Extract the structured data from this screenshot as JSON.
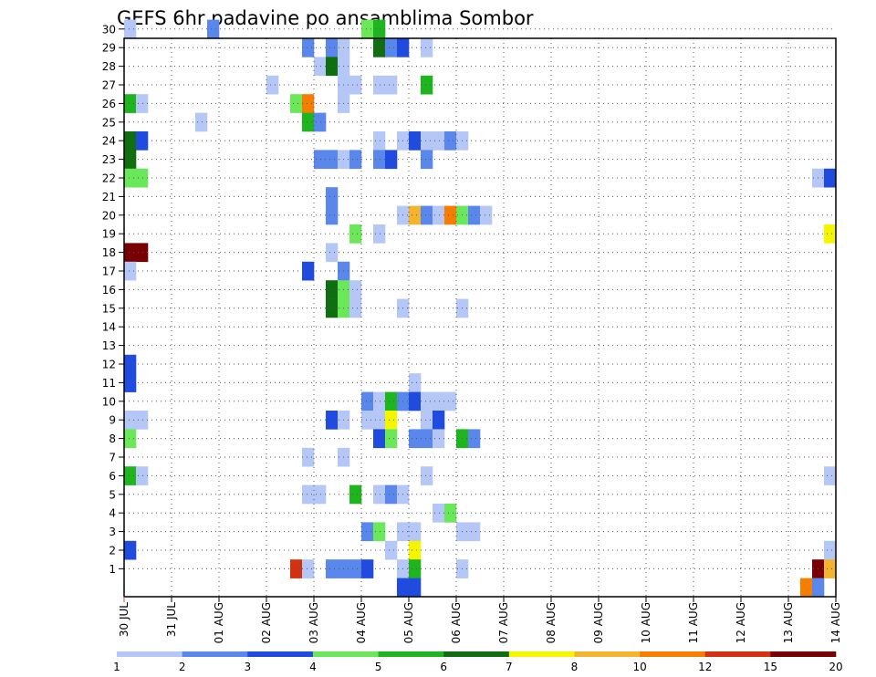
{
  "chart_data": {
    "type": "heatmap",
    "title": "GEFS 6hr padavine po ansamblima Sombor",
    "xlabel": "",
    "ylabel": "",
    "y_ticks": [
      "1",
      "2",
      "3",
      "4",
      "5",
      "6",
      "7",
      "8",
      "9",
      "10",
      "11",
      "12",
      "13",
      "14",
      "15",
      "16",
      "17",
      "18",
      "19",
      "20",
      "21",
      "22",
      "23",
      "24",
      "25",
      "26",
      "27",
      "28",
      "29",
      "30"
    ],
    "x_ticks": [
      "30 JUL",
      "31 JUL",
      "01 AUG",
      "02 AUG",
      "03 AUG",
      "04 AUG",
      "05 AUG",
      "06 AUG",
      "07 AUG",
      "08 AUG",
      "09 AUG",
      "10 AUG",
      "11 AUG",
      "12 AUG",
      "13 AUG",
      "14 AUG"
    ],
    "x_range": [
      "30 JUL 00Z",
      "14 AUG 00Z"
    ],
    "step": "6hr",
    "grid": true,
    "legend": {
      "placement": "bottom",
      "ticks": [
        "1",
        "2",
        "3",
        "4",
        "5",
        "6",
        "7",
        "8",
        "10",
        "12",
        "15",
        "20"
      ],
      "colors": [
        "#b4c7f7",
        "#5a87eb",
        "#1f4be0",
        "#6be85a",
        "#1fb51f",
        "#0f6e0f",
        "#f5f500",
        "#f5b42d",
        "#f57d00",
        "#d2320f",
        "#780000"
      ]
    },
    "cells": [
      {
        "t": 1,
        "m": 30,
        "c": 0
      },
      {
        "t": 8,
        "m": 30,
        "c": 1
      },
      {
        "t": 21,
        "m": 30,
        "c": 3
      },
      {
        "t": 22,
        "m": 30,
        "c": 4
      },
      {
        "t": 16,
        "m": 29,
        "c": 1
      },
      {
        "t": 18,
        "m": 29,
        "c": 1
      },
      {
        "t": 19,
        "m": 29,
        "c": 0
      },
      {
        "t": 22,
        "m": 29,
        "c": 5
      },
      {
        "t": 23,
        "m": 29,
        "c": 1
      },
      {
        "t": 24,
        "m": 29,
        "c": 2
      },
      {
        "t": 26,
        "m": 29,
        "c": 0
      },
      {
        "t": 17,
        "m": 28,
        "c": 0
      },
      {
        "t": 18,
        "m": 28,
        "c": 5
      },
      {
        "t": 19,
        "m": 28,
        "c": 0
      },
      {
        "t": 13,
        "m": 27,
        "c": 0
      },
      {
        "t": 19,
        "m": 27,
        "c": 0
      },
      {
        "t": 20,
        "m": 27,
        "c": 0
      },
      {
        "t": 22,
        "m": 27,
        "c": 0
      },
      {
        "t": 23,
        "m": 27,
        "c": 0
      },
      {
        "t": 26,
        "m": 27,
        "c": 4
      },
      {
        "t": 1,
        "m": 26,
        "c": 4
      },
      {
        "t": 2,
        "m": 26,
        "c": 0
      },
      {
        "t": 15,
        "m": 26,
        "c": 3
      },
      {
        "t": 16,
        "m": 26,
        "c": 8
      },
      {
        "t": 19,
        "m": 26,
        "c": 0
      },
      {
        "t": 7,
        "m": 25,
        "c": 0
      },
      {
        "t": 16,
        "m": 25,
        "c": 4
      },
      {
        "t": 17,
        "m": 25,
        "c": 1
      },
      {
        "t": 1,
        "m": 24,
        "c": 5
      },
      {
        "t": 2,
        "m": 24,
        "c": 2
      },
      {
        "t": 22,
        "m": 24,
        "c": 0
      },
      {
        "t": 24,
        "m": 24,
        "c": 0
      },
      {
        "t": 25,
        "m": 24,
        "c": 2
      },
      {
        "t": 26,
        "m": 24,
        "c": 0
      },
      {
        "t": 27,
        "m": 24,
        "c": 0
      },
      {
        "t": 28,
        "m": 24,
        "c": 1
      },
      {
        "t": 29,
        "m": 24,
        "c": 0
      },
      {
        "t": 1,
        "m": 23,
        "c": 5
      },
      {
        "t": 17,
        "m": 23,
        "c": 1
      },
      {
        "t": 18,
        "m": 23,
        "c": 1
      },
      {
        "t": 19,
        "m": 23,
        "c": 0
      },
      {
        "t": 20,
        "m": 23,
        "c": 1
      },
      {
        "t": 22,
        "m": 23,
        "c": 1
      },
      {
        "t": 23,
        "m": 23,
        "c": 2
      },
      {
        "t": 26,
        "m": 23,
        "c": 1
      },
      {
        "t": 1,
        "m": 22,
        "c": 3
      },
      {
        "t": 2,
        "m": 22,
        "c": 3
      },
      {
        "t": 59,
        "m": 22,
        "c": 0
      },
      {
        "t": 60,
        "m": 22,
        "c": 2
      },
      {
        "t": 18,
        "m": 21,
        "c": 1
      },
      {
        "t": 18,
        "m": 20,
        "c": 1
      },
      {
        "t": 24,
        "m": 20,
        "c": 0
      },
      {
        "t": 25,
        "m": 20,
        "c": 7
      },
      {
        "t": 26,
        "m": 20,
        "c": 1
      },
      {
        "t": 27,
        "m": 20,
        "c": 0
      },
      {
        "t": 28,
        "m": 20,
        "c": 8
      },
      {
        "t": 29,
        "m": 20,
        "c": 3
      },
      {
        "t": 30,
        "m": 20,
        "c": 1
      },
      {
        "t": 31,
        "m": 20,
        "c": 0
      },
      {
        "t": 20,
        "m": 19,
        "c": 3
      },
      {
        "t": 22,
        "m": 19,
        "c": 0
      },
      {
        "t": 60,
        "m": 19,
        "c": 6
      },
      {
        "t": 18,
        "m": 18,
        "c": 0
      },
      {
        "t": 1,
        "m": 18,
        "c": 10
      },
      {
        "t": 2,
        "m": 18,
        "c": 10
      },
      {
        "t": 19,
        "m": 17,
        "c": 1
      },
      {
        "t": 1,
        "m": 17,
        "c": 0
      },
      {
        "t": 16,
        "m": 17,
        "c": 2
      },
      {
        "t": 18,
        "m": 16,
        "c": 5
      },
      {
        "t": 19,
        "m": 16,
        "c": 3
      },
      {
        "t": 20,
        "m": 16,
        "c": 0
      },
      {
        "t": 18,
        "m": 15,
        "c": 5
      },
      {
        "t": 19,
        "m": 15,
        "c": 3
      },
      {
        "t": 20,
        "m": 15,
        "c": 0
      },
      {
        "t": 24,
        "m": 15,
        "c": 0
      },
      {
        "t": 29,
        "m": 15,
        "c": 0
      },
      {
        "t": 1,
        "m": 12,
        "c": 2
      },
      {
        "t": 1,
        "m": 11,
        "c": 2
      },
      {
        "t": 25,
        "m": 11,
        "c": 0
      },
      {
        "t": 21,
        "m": 10,
        "c": 1
      },
      {
        "t": 22,
        "m": 10,
        "c": 0
      },
      {
        "t": 23,
        "m": 10,
        "c": 4
      },
      {
        "t": 24,
        "m": 10,
        "c": 1
      },
      {
        "t": 25,
        "m": 10,
        "c": 2
      },
      {
        "t": 26,
        "m": 10,
        "c": 0
      },
      {
        "t": 27,
        "m": 10,
        "c": 0
      },
      {
        "t": 28,
        "m": 10,
        "c": 0
      },
      {
        "t": 1,
        "m": 9,
        "c": 0
      },
      {
        "t": 2,
        "m": 9,
        "c": 0
      },
      {
        "t": 18,
        "m": 9,
        "c": 2
      },
      {
        "t": 19,
        "m": 9,
        "c": 0
      },
      {
        "t": 21,
        "m": 9,
        "c": 0
      },
      {
        "t": 22,
        "m": 9,
        "c": 0
      },
      {
        "t": 23,
        "m": 9,
        "c": 6
      },
      {
        "t": 26,
        "m": 9,
        "c": 0
      },
      {
        "t": 27,
        "m": 9,
        "c": 2
      },
      {
        "t": 1,
        "m": 8,
        "c": 3
      },
      {
        "t": 22,
        "m": 8,
        "c": 2
      },
      {
        "t": 23,
        "m": 8,
        "c": 3
      },
      {
        "t": 25,
        "m": 8,
        "c": 1
      },
      {
        "t": 26,
        "m": 8,
        "c": 1
      },
      {
        "t": 27,
        "m": 8,
        "c": 0
      },
      {
        "t": 29,
        "m": 8,
        "c": 4
      },
      {
        "t": 30,
        "m": 8,
        "c": 1
      },
      {
        "t": 16,
        "m": 7,
        "c": 0
      },
      {
        "t": 19,
        "m": 7,
        "c": 0
      },
      {
        "t": 1,
        "m": 6,
        "c": 4
      },
      {
        "t": 2,
        "m": 6,
        "c": 0
      },
      {
        "t": 26,
        "m": 6,
        "c": 0
      },
      {
        "t": 60,
        "m": 6,
        "c": 0
      },
      {
        "t": 16,
        "m": 5,
        "c": 0
      },
      {
        "t": 17,
        "m": 5,
        "c": 0
      },
      {
        "t": 20,
        "m": 5,
        "c": 4
      },
      {
        "t": 22,
        "m": 5,
        "c": 0
      },
      {
        "t": 23,
        "m": 5,
        "c": 1
      },
      {
        "t": 24,
        "m": 5,
        "c": 0
      },
      {
        "t": 27,
        "m": 4,
        "c": 0
      },
      {
        "t": 28,
        "m": 4,
        "c": 3
      },
      {
        "t": 21,
        "m": 3,
        "c": 1
      },
      {
        "t": 22,
        "m": 3,
        "c": 3
      },
      {
        "t": 24,
        "m": 3,
        "c": 0
      },
      {
        "t": 25,
        "m": 3,
        "c": 0
      },
      {
        "t": 29,
        "m": 3,
        "c": 0
      },
      {
        "t": 30,
        "m": 3,
        "c": 0
      },
      {
        "t": 1,
        "m": 2,
        "c": 2
      },
      {
        "t": 23,
        "m": 2,
        "c": 0
      },
      {
        "t": 25,
        "m": 2,
        "c": 6
      },
      {
        "t": 60,
        "m": 2,
        "c": 0
      },
      {
        "t": 15,
        "m": 1,
        "c": 9
      },
      {
        "t": 16,
        "m": 1,
        "c": 0
      },
      {
        "t": 18,
        "m": 1,
        "c": 1
      },
      {
        "t": 19,
        "m": 1,
        "c": 1
      },
      {
        "t": 20,
        "m": 1,
        "c": 1
      },
      {
        "t": 21,
        "m": 1,
        "c": 2
      },
      {
        "t": 24,
        "m": 1,
        "c": 0
      },
      {
        "t": 25,
        "m": 1,
        "c": 4
      },
      {
        "t": 29,
        "m": 1,
        "c": 0
      },
      {
        "t": 59,
        "m": 1,
        "c": 10
      },
      {
        "t": 60,
        "m": 1,
        "c": 7
      },
      {
        "t": 24,
        "m": 0,
        "c": 2
      },
      {
        "t": 25,
        "m": 0,
        "c": 2
      },
      {
        "t": 58,
        "m": 0,
        "c": 8
      },
      {
        "t": 59,
        "m": 0,
        "c": 1
      }
    ]
  }
}
